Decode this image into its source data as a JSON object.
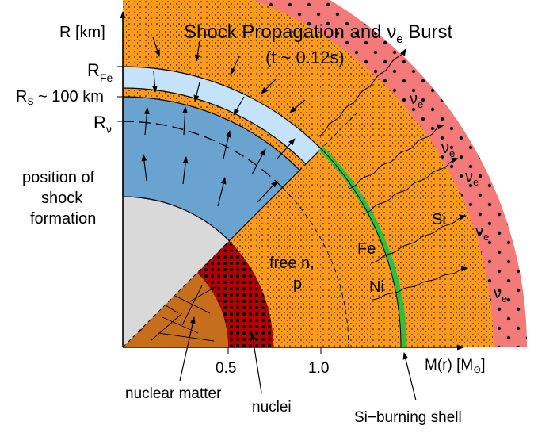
{
  "title": {
    "line1_pre": "Shock Propagation and ",
    "nu": "ν",
    "nu_sub": "e",
    "line1_post": " Burst",
    "line2": "(t ~ 0.12s)"
  },
  "axes": {
    "y_label": "R [km]",
    "x_label_pre": "M(r) [M",
    "x_label_sun": "⊙",
    "x_label_post": "]",
    "x_ticks": [
      "0.5",
      "1.0"
    ]
  },
  "radii_labels": {
    "r_fe_main": "R",
    "r_fe_sub": "Fe",
    "r_s_main": "R",
    "r_s_sub": "S",
    "r_s_tail": " ~ 100 km",
    "r_nu_main": "R",
    "r_nu_sub": "ν"
  },
  "region_labels": {
    "free_np_line1": "free n,",
    "free_np_line2": "p",
    "fe": "Fe",
    "ni": "Ni",
    "si": "Si"
  },
  "callouts": {
    "shock_line1": "position of",
    "shock_line2": "shock",
    "shock_line3": "formation",
    "nuclear_matter": "nuclear matter",
    "nuclei": "nuclei",
    "si_burning_shell": "Si−burning shell"
  },
  "neutrino_labels": [
    {
      "nu": "ν",
      "sub": "e"
    },
    {
      "nu": "ν",
      "sub": "e"
    },
    {
      "nu": "ν",
      "sub": "e"
    },
    {
      "nu": "ν",
      "sub": "e"
    },
    {
      "nu": "ν",
      "sub": "e"
    }
  ],
  "colors": {
    "outer_infall": "#c4e3f8",
    "shocked_blue": "#6aa3cf",
    "core_gray": "#d9d9d9",
    "free_np_orange": "#ff9a1a",
    "fe_ni_red": "#f47a7a",
    "nuclei_darkred": "#b00000",
    "nuclear_matter_brown": "#c66e1c",
    "si_green": "#8ef57e",
    "si_shell_green": "#2fbf3a"
  }
}
